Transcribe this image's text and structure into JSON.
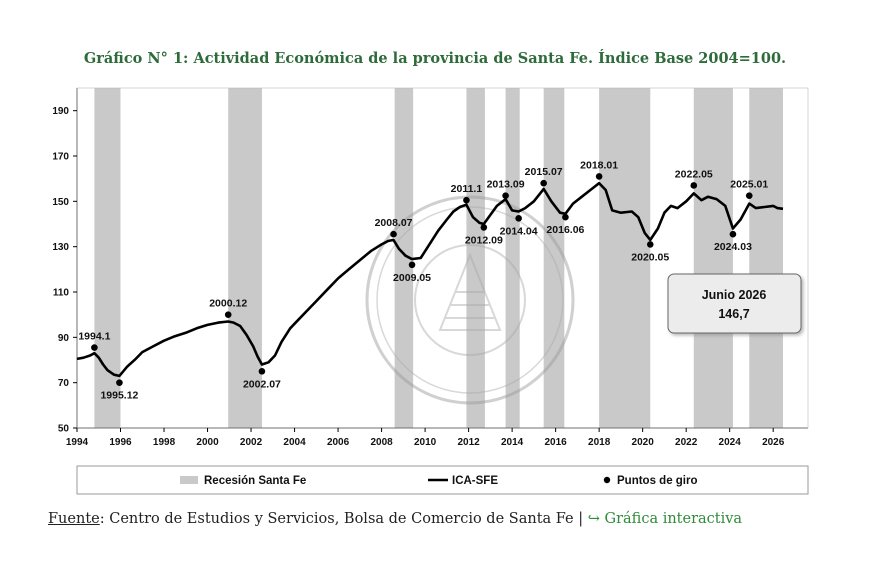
{
  "title": "Gráfico N° 1: Actividad Económica de la provincia de Santa Fe. Índice Base 2004=100.",
  "source": {
    "label": "Fuente",
    "text": ": Centro de Estudios y Servicios, Bolsa de Comercio de Santa Fe | ",
    "link": "↪ Gráfica interactiva"
  },
  "colors": {
    "title": "#2e6b3a",
    "recession": "#c9c9c9",
    "line": "#000000",
    "link": "#2e8b3a"
  },
  "chart_data": {
    "type": "line",
    "xlim": [
      1994,
      2027.6
    ],
    "ylim": [
      50,
      200
    ],
    "x_ticks": [
      1994,
      1996,
      1998,
      2000,
      2002,
      2004,
      2006,
      2008,
      2010,
      2012,
      2014,
      2016,
      2018,
      2020,
      2022,
      2024,
      2026
    ],
    "y_ticks": [
      50,
      70,
      90,
      110,
      130,
      150,
      170,
      190
    ],
    "grid": false,
    "legend_placement": "bottom",
    "recessions": [
      [
        1994.8,
        1996.0
      ],
      [
        2000.95,
        2002.5
      ],
      [
        2008.6,
        2009.45
      ],
      [
        2011.9,
        2012.75
      ],
      [
        2013.7,
        2014.35
      ],
      [
        2015.45,
        2016.4
      ],
      [
        2018.0,
        2020.35
      ],
      [
        2022.35,
        2024.15
      ],
      [
        2024.9,
        2026.45
      ]
    ],
    "series": [
      {
        "name": "ICA-SFE",
        "x": [
          1994.0,
          1994.3,
          1994.6,
          1994.8,
          1995.0,
          1995.2,
          1995.4,
          1995.7,
          1995.95,
          1996.3,
          1996.7,
          1997.0,
          1997.5,
          1998.0,
          1998.5,
          1999.0,
          1999.5,
          2000.0,
          2000.5,
          2000.95,
          2001.2,
          2001.5,
          2001.8,
          2002.1,
          2002.3,
          2002.5,
          2002.8,
          2003.1,
          2003.4,
          2003.8,
          2004.2,
          2004.6,
          2005.0,
          2005.5,
          2006.0,
          2006.5,
          2007.0,
          2007.5,
          2008.0,
          2008.3,
          2008.55,
          2008.8,
          2009.1,
          2009.4,
          2009.8,
          2010.2,
          2010.6,
          2011.0,
          2011.3,
          2011.6,
          2011.9,
          2012.2,
          2012.5,
          2012.7,
          2013.0,
          2013.3,
          2013.7,
          2014.0,
          2014.3,
          2014.6,
          2015.0,
          2015.45,
          2015.8,
          2016.2,
          2016.45,
          2016.8,
          2017.2,
          2017.6,
          2018.0,
          2018.3,
          2018.6,
          2019.0,
          2019.5,
          2019.8,
          2020.1,
          2020.35,
          2020.7,
          2021.0,
          2021.3,
          2021.6,
          2022.0,
          2022.35,
          2022.7,
          2023.0,
          2023.4,
          2023.8,
          2024.15,
          2024.5,
          2024.9,
          2025.2,
          2025.6,
          2026.0,
          2026.2,
          2026.45
        ],
        "values": [
          80.5,
          81.0,
          82.0,
          83.0,
          81.0,
          78.0,
          75.5,
          73.5,
          73.0,
          77.0,
          80.5,
          83.5,
          86.0,
          88.5,
          90.5,
          92.0,
          94.0,
          95.5,
          96.5,
          97.0,
          96.5,
          95.0,
          91.0,
          86.0,
          81.5,
          78.0,
          79.0,
          82.0,
          88.0,
          94.0,
          98.0,
          102.0,
          106.0,
          111.0,
          116.0,
          120.0,
          124.0,
          128.0,
          131.0,
          132.5,
          133.0,
          129.0,
          126.0,
          124.5,
          125.0,
          131.0,
          137.0,
          142.0,
          145.5,
          147.5,
          148.5,
          143.0,
          140.5,
          140.0,
          144.0,
          148.0,
          151.0,
          146.0,
          145.5,
          147.0,
          150.0,
          155.5,
          150.0,
          145.0,
          144.5,
          149.0,
          152.0,
          155.0,
          158.0,
          155.0,
          146.0,
          145.0,
          145.5,
          143.0,
          136.0,
          133.0,
          138.0,
          145.0,
          148.0,
          147.0,
          150.0,
          153.5,
          150.5,
          152.0,
          151.0,
          148.0,
          138.0,
          142.0,
          149.0,
          147.0,
          147.5,
          148.0,
          147.0,
          146.7
        ]
      }
    ],
    "turning_points": [
      {
        "label": "1994.1",
        "x": 1994.8,
        "y": 85.5,
        "pos": "above"
      },
      {
        "label": "1995.12",
        "x": 1995.95,
        "y": 70.0,
        "pos": "below"
      },
      {
        "label": "2000.12",
        "x": 2000.95,
        "y": 100.0,
        "pos": "above"
      },
      {
        "label": "2002.07",
        "x": 2002.5,
        "y": 75.0,
        "pos": "below"
      },
      {
        "label": "2008.07",
        "x": 2008.55,
        "y": 135.5,
        "pos": "above"
      },
      {
        "label": "2009.05",
        "x": 2009.4,
        "y": 122.0,
        "pos": "below"
      },
      {
        "label": "2011.1",
        "x": 2011.9,
        "y": 150.5,
        "pos": "above"
      },
      {
        "label": "2012.09",
        "x": 2012.7,
        "y": 138.5,
        "pos": "below"
      },
      {
        "label": "2013.09",
        "x": 2013.7,
        "y": 152.5,
        "pos": "above"
      },
      {
        "label": "2014.04",
        "x": 2014.3,
        "y": 142.5,
        "pos": "below"
      },
      {
        "label": "2015.07",
        "x": 2015.45,
        "y": 158.0,
        "pos": "above"
      },
      {
        "label": "2016.06",
        "x": 2016.45,
        "y": 143.0,
        "pos": "below"
      },
      {
        "label": "2018.01",
        "x": 2018.0,
        "y": 161.0,
        "pos": "above"
      },
      {
        "label": "2020.05",
        "x": 2020.35,
        "y": 131.0,
        "pos": "below"
      },
      {
        "label": "2022.05",
        "x": 2022.35,
        "y": 157.0,
        "pos": "above"
      },
      {
        "label": "2024.03",
        "x": 2024.15,
        "y": 135.5,
        "pos": "below"
      },
      {
        "label": "2025.01",
        "x": 2024.9,
        "y": 152.5,
        "pos": "above"
      }
    ],
    "legend": {
      "recession": "Recesión Santa Fe",
      "line": "ICA-SFE",
      "points": "Puntos de giro"
    },
    "callout": {
      "line1": "Junio 2026",
      "line2": "146,7"
    }
  }
}
